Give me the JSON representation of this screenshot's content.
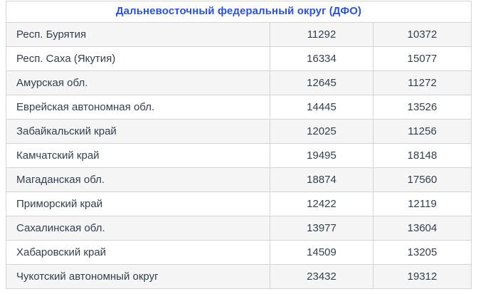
{
  "colors": {
    "header_text": "#2a52db",
    "row_text": "#333f4d",
    "border": "#d4d4d4",
    "stripe_background": "#f5f5f5",
    "white_background": "#ffffff"
  },
  "chart_data": {
    "type": "table",
    "title": "Дальневосточный федеральный округ (ДФО)",
    "columns": [
      "region",
      "value_1",
      "value_2"
    ],
    "rows": [
      {
        "region": "Респ. Бурятия",
        "values": [
          11292,
          10372
        ]
      },
      {
        "region": "Респ. Саха (Якутия)",
        "values": [
          16334,
          15077
        ]
      },
      {
        "region": "Амурская обл.",
        "values": [
          12645,
          11272
        ]
      },
      {
        "region": "Еврейская автономная обл.",
        "values": [
          14445,
          13526
        ]
      },
      {
        "region": "Забайкальский край",
        "values": [
          12025,
          11256
        ]
      },
      {
        "region": "Камчатский край",
        "values": [
          19495,
          18148
        ]
      },
      {
        "region": "Магаданская обл.",
        "values": [
          18874,
          17560
        ]
      },
      {
        "region": "Приморский край",
        "values": [
          12422,
          12119
        ]
      },
      {
        "region": "Сахалинская обл.",
        "values": [
          13977,
          13604
        ]
      },
      {
        "region": "Хабаровский край",
        "values": [
          14509,
          13205
        ]
      },
      {
        "region": "Чукотский автономный округ",
        "values": [
          23432,
          19312
        ]
      }
    ]
  }
}
